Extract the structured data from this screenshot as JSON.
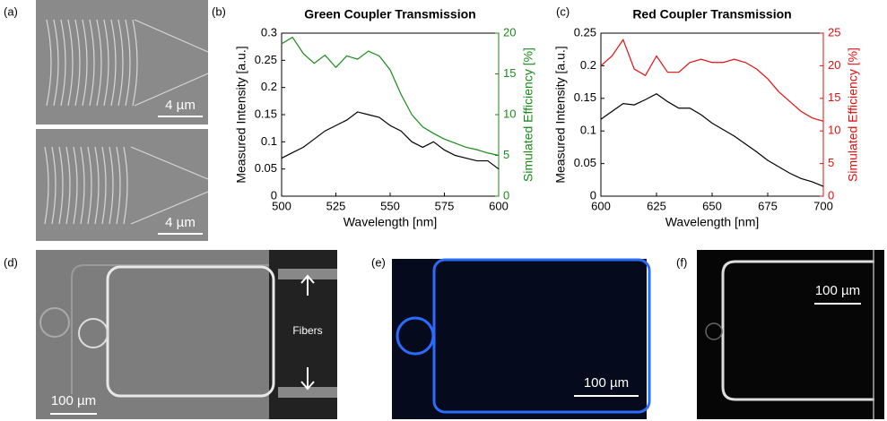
{
  "panels": {
    "a": "(a)",
    "b": "(b)",
    "c": "(c)",
    "d": "(d)",
    "e": "(e)",
    "f": "(f)"
  },
  "images": {
    "a_top_scale": "4 µm",
    "a_bottom_scale": "4 µm",
    "d_scale": "100 µm",
    "d_fibers": "Fibers",
    "e_scale": "100 µm",
    "f_scale": "100 µm"
  },
  "chart_data": [
    {
      "type": "line",
      "title": "Green Coupler Transmission",
      "xlabel": "Wavelength [nm]",
      "ylabel": "Measured Intensity [a.u.]",
      "y2label": "Simulated Efficiency [%]",
      "x": [
        500,
        505,
        510,
        515,
        520,
        525,
        530,
        535,
        540,
        545,
        550,
        555,
        560,
        565,
        570,
        575,
        580,
        585,
        590,
        595,
        600
      ],
      "xlim": [
        500,
        600
      ],
      "xticks": [
        500,
        525,
        550,
        575,
        600
      ],
      "ylim": [
        0,
        0.3
      ],
      "yticks": [
        0,
        0.05,
        0.1,
        0.15,
        0.2,
        0.25,
        0.3
      ],
      "y2lim": [
        0,
        20
      ],
      "y2ticks": [
        0,
        5,
        10,
        15,
        20
      ],
      "series": [
        {
          "color": "#000000",
          "values": [
            0.07,
            0.08,
            0.09,
            0.105,
            0.12,
            0.13,
            0.14,
            0.155,
            0.15,
            0.145,
            0.13,
            0.12,
            0.1,
            0.09,
            0.1,
            0.085,
            0.075,
            0.07,
            0.065,
            0.065,
            0.05
          ]
        },
        {
          "color": "#1a8a1a",
          "axis": "y2",
          "values": [
            18.7,
            19.5,
            17.5,
            16.3,
            17.3,
            15.8,
            17.2,
            16.8,
            17.8,
            17.2,
            15.5,
            12.5,
            10,
            8.5,
            7.7,
            7,
            6.5,
            6,
            5.7,
            5.3,
            5
          ]
        }
      ]
    },
    {
      "type": "line",
      "title": "Red Coupler Transmission",
      "xlabel": "Wavelength [nm]",
      "ylabel": "Measured Intensity [a.u.]",
      "y2label": "Simulated Efficiency [%]",
      "x": [
        600,
        605,
        610,
        615,
        620,
        625,
        630,
        635,
        640,
        645,
        650,
        655,
        660,
        665,
        670,
        675,
        680,
        685,
        690,
        695,
        700
      ],
      "xlim": [
        600,
        700
      ],
      "xticks": [
        600,
        625,
        650,
        675,
        700
      ],
      "ylim": [
        0,
        0.25
      ],
      "yticks": [
        0,
        0.05,
        0.1,
        0.15,
        0.2,
        0.25
      ],
      "y2lim": [
        0,
        25
      ],
      "y2ticks": [
        0,
        5,
        10,
        15,
        20,
        25
      ],
      "series": [
        {
          "color": "#000000",
          "values": [
            0.118,
            0.13,
            0.142,
            0.14,
            0.148,
            0.157,
            0.145,
            0.135,
            0.135,
            0.125,
            0.112,
            0.102,
            0.092,
            0.08,
            0.068,
            0.055,
            0.045,
            0.035,
            0.027,
            0.022,
            0.015
          ]
        },
        {
          "color": "#e01010",
          "axis": "y2",
          "values": [
            20,
            21.5,
            24,
            19.5,
            18.5,
            21.5,
            19,
            19,
            20.5,
            21,
            20.5,
            20.5,
            21,
            20.5,
            19.5,
            18,
            16,
            14.5,
            13,
            12,
            11.5
          ]
        }
      ]
    }
  ]
}
